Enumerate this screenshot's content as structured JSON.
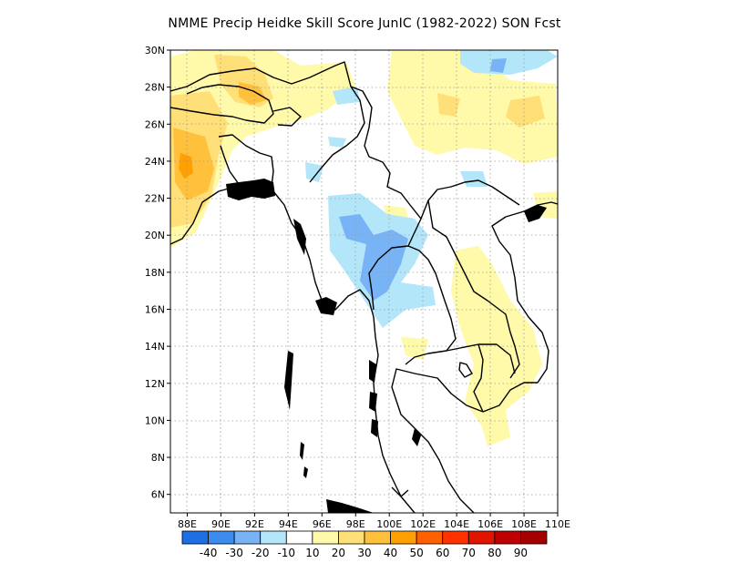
{
  "title": "NMME Precip Heidke Skill Score JunIC (1982-2022) SON Fcst",
  "map": {
    "lon_range": [
      87,
      110
    ],
    "lat_range": [
      5,
      30
    ],
    "lat_ticks": [
      {
        "value": 30,
        "label": "30N"
      },
      {
        "value": 28,
        "label": "28N"
      },
      {
        "value": 26,
        "label": "26N"
      },
      {
        "value": 24,
        "label": "24N"
      },
      {
        "value": 22,
        "label": "22N"
      },
      {
        "value": 20,
        "label": "20N"
      },
      {
        "value": 18,
        "label": "18N"
      },
      {
        "value": 16,
        "label": "16N"
      },
      {
        "value": 14,
        "label": "14N"
      },
      {
        "value": 12,
        "label": "12N"
      },
      {
        "value": 10,
        "label": "10N"
      },
      {
        "value": 8,
        "label": "8N"
      },
      {
        "value": 6,
        "label": "6N"
      }
    ],
    "lon_ticks": [
      {
        "value": 88,
        "label": "88E"
      },
      {
        "value": 90,
        "label": "90E"
      },
      {
        "value": 92,
        "label": "92E"
      },
      {
        "value": 94,
        "label": "94E"
      },
      {
        "value": 96,
        "label": "96E"
      },
      {
        "value": 98,
        "label": "98E"
      },
      {
        "value": 100,
        "label": "100E"
      },
      {
        "value": 102,
        "label": "102E"
      },
      {
        "value": 104,
        "label": "104E"
      },
      {
        "value": 106,
        "label": "106E"
      },
      {
        "value": 108,
        "label": "108E"
      },
      {
        "value": 110,
        "label": "110E"
      }
    ],
    "gridlines": true
  },
  "colorbar": {
    "bins": [
      {
        "color": "#1e6ee6"
      },
      {
        "color": "#3c8cf0"
      },
      {
        "color": "#78b4f5"
      },
      {
        "color": "#b4e6fa"
      },
      {
        "color": "#ffffff"
      },
      {
        "color": "#fffaaa"
      },
      {
        "color": "#ffe078"
      },
      {
        "color": "#ffc03c"
      },
      {
        "color": "#ffa000"
      },
      {
        "color": "#ff6000"
      },
      {
        "color": "#ff3200"
      },
      {
        "color": "#e11400"
      },
      {
        "color": "#c00000"
      },
      {
        "color": "#a50000"
      }
    ],
    "labels": [
      "-40",
      "-30",
      "-20",
      "-10",
      "10",
      "20",
      "30",
      "40",
      "50",
      "60",
      "70",
      "80",
      "90"
    ]
  }
}
